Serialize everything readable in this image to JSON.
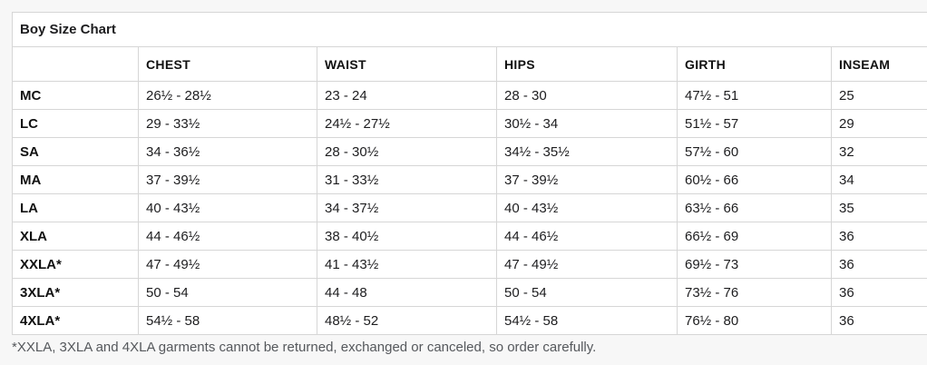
{
  "title": "Boy Size Chart",
  "colors": {
    "title_blue": "#2255f0",
    "border_gray": "#d6d6d6",
    "page_background": "#f7f7f7",
    "table_background": "#ffffff",
    "body_text": "#1d1d1f",
    "footnote_text": "#55585c"
  },
  "table": {
    "columns": [
      "",
      "CHEST",
      "WAIST",
      "HIPS",
      "GIRTH",
      "INSEAM"
    ],
    "rows": [
      {
        "size": "MC",
        "chest": "26½ - 28½",
        "waist": "23 - 24",
        "hips": "28 - 30",
        "girth": "47½ - 51",
        "inseam": "25"
      },
      {
        "size": "LC",
        "chest": "29 - 33½",
        "waist": "24½ - 27½",
        "hips": "30½ - 34",
        "girth": "51½ - 57",
        "inseam": "29"
      },
      {
        "size": "SA",
        "chest": "34 - 36½",
        "waist": "28 - 30½",
        "hips": "34½ - 35½",
        "girth": "57½ - 60",
        "inseam": "32"
      },
      {
        "size": "MA",
        "chest": "37 - 39½",
        "waist": "31 - 33½",
        "hips": "37 - 39½",
        "girth": "60½ - 66",
        "inseam": "34"
      },
      {
        "size": "LA",
        "chest": "40 - 43½",
        "waist": "34 - 37½",
        "hips": "40 - 43½",
        "girth": "63½ - 66",
        "inseam": "35"
      },
      {
        "size": "XLA",
        "chest": "44 - 46½",
        "waist": "38 - 40½",
        "hips": "44 - 46½",
        "girth": "66½ - 69",
        "inseam": "36"
      },
      {
        "size": "XXLA*",
        "chest": "47 - 49½",
        "waist": "41 - 43½",
        "hips": "47 - 49½",
        "girth": "69½ - 73",
        "inseam": "36"
      },
      {
        "size": "3XLA*",
        "chest": "50 - 54",
        "waist": "44 - 48",
        "hips": "50 - 54",
        "girth": "73½ - 76",
        "inseam": "36"
      },
      {
        "size": "4XLA*",
        "chest": "54½ - 58",
        "waist": "48½ - 52",
        "hips": "54½ - 58",
        "girth": "76½ - 80",
        "inseam": "36"
      }
    ]
  },
  "footnote": "*XXLA, 3XLA and 4XLA garments cannot be returned, exchanged or canceled, so order carefully."
}
